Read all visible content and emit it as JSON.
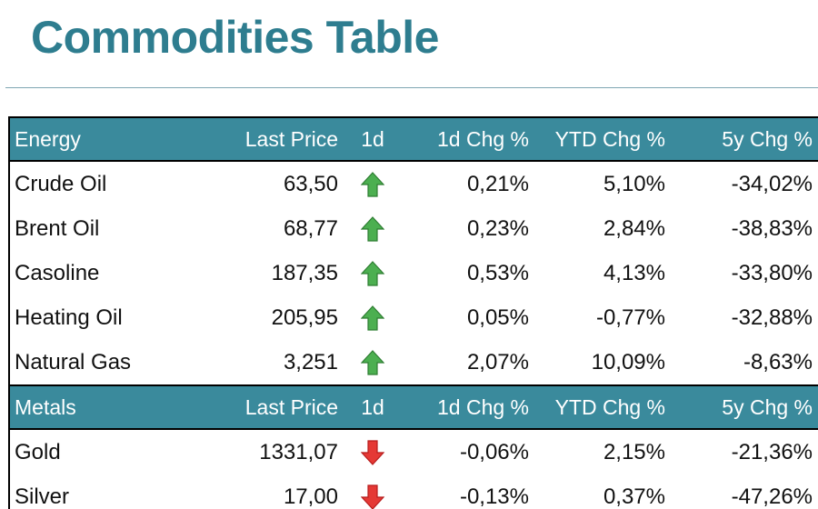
{
  "title": "Commodities Table",
  "colors": {
    "title": "#2e7d8f",
    "header_bg": "#3a8a9c",
    "up_arrow": "#4caf50",
    "down_arrow": "#e53935"
  },
  "columns": [
    "Last Price",
    "1d",
    "1d Chg %",
    "YTD Chg %",
    "5y Chg %"
  ],
  "sections": [
    {
      "name": "Energy",
      "rows": [
        {
          "name": "Crude Oil",
          "last_price": "63,50",
          "direction": "up",
          "chg_1d": "0,21%",
          "chg_ytd": "5,10%",
          "chg_5y": "-34,02%"
        },
        {
          "name": "Brent Oil",
          "last_price": "68,77",
          "direction": "up",
          "chg_1d": "0,23%",
          "chg_ytd": "2,84%",
          "chg_5y": "-38,83%"
        },
        {
          "name": "Casoline",
          "last_price": "187,35",
          "direction": "up",
          "chg_1d": "0,53%",
          "chg_ytd": "4,13%",
          "chg_5y": "-33,80%"
        },
        {
          "name": "Heating Oil",
          "last_price": "205,95",
          "direction": "up",
          "chg_1d": "0,05%",
          "chg_ytd": "-0,77%",
          "chg_5y": "-32,88%"
        },
        {
          "name": "Natural Gas",
          "last_price": "3,251",
          "direction": "up",
          "chg_1d": "2,07%",
          "chg_ytd": "10,09%",
          "chg_5y": "-8,63%"
        }
      ]
    },
    {
      "name": "Metals",
      "rows": [
        {
          "name": "Gold",
          "last_price": "1331,07",
          "direction": "down",
          "chg_1d": "-0,06%",
          "chg_ytd": "2,15%",
          "chg_5y": "-21,36%"
        },
        {
          "name": "Silver",
          "last_price": "17,00",
          "direction": "down",
          "chg_1d": "-0,13%",
          "chg_ytd": "0,37%",
          "chg_5y": "-47,26%"
        }
      ]
    }
  ]
}
